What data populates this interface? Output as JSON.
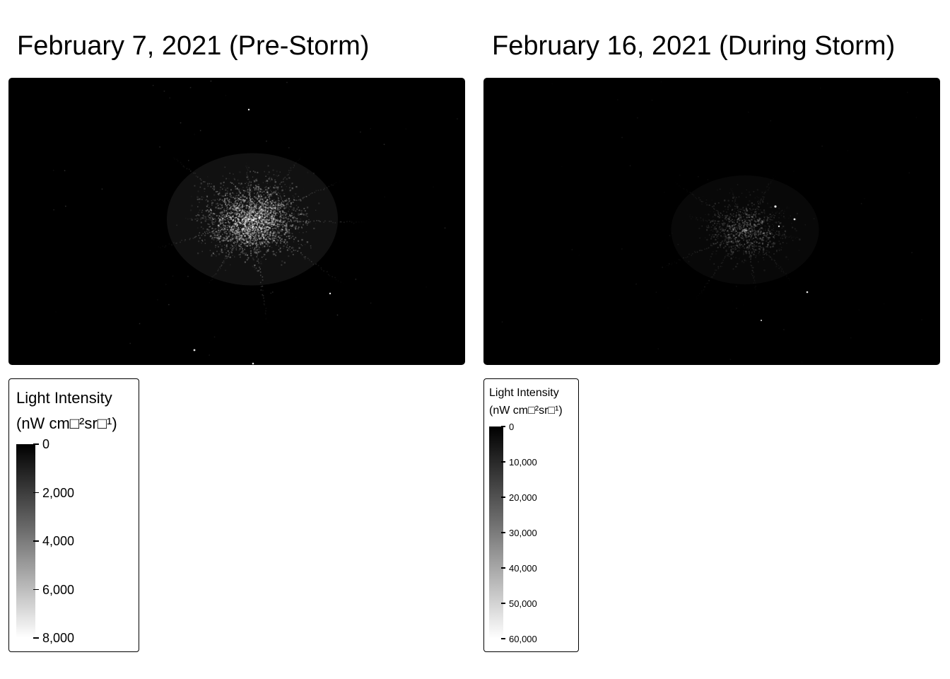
{
  "panels": [
    {
      "title": "February 7, 2021 (Pre-Storm)",
      "legend": {
        "title_line1": "Light Intensity",
        "title_line2": "(nW cm□²sr□¹)",
        "ticks": [
          "0",
          "2,000",
          "4,000",
          "6,000",
          "8,000"
        ],
        "range": [
          0,
          8000
        ]
      },
      "intensity": "bright"
    },
    {
      "title": "February 16, 2021 (During Storm)",
      "legend": {
        "title_line1": "Light Intensity",
        "title_line2": "(nW cm□²sr□¹)",
        "ticks": [
          "0",
          "10,000",
          "20,000",
          "30,000",
          "40,000",
          "50,000",
          "60,000"
        ],
        "range": [
          0,
          60000
        ]
      },
      "intensity": "dim"
    }
  ],
  "colors": {
    "background": "#ffffff",
    "map_background": "#000000",
    "scale_low": "#000000",
    "scale_high": "#ffffff"
  }
}
